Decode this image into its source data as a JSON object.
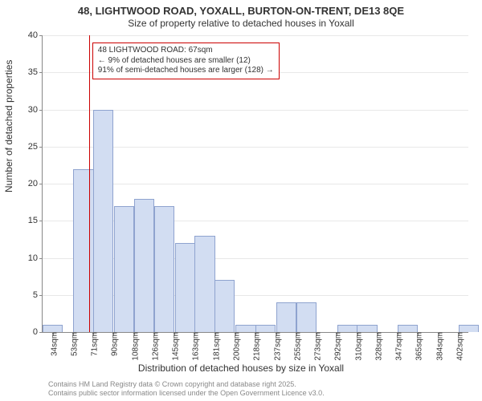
{
  "title_line1": "48, LIGHTWOOD ROAD, YOXALL, BURTON-ON-TRENT, DE13 8QE",
  "title_line2": "Size of property relative to detached houses in Yoxall",
  "ylabel": "Number of detached properties",
  "xlabel": "Distribution of detached houses by size in Yoxall",
  "attribution1": "Contains HM Land Registry data © Crown copyright and database right 2025.",
  "attribution2": "Contains public sector information licensed under the Open Government Licence v3.0.",
  "chart": {
    "type": "histogram",
    "background_color": "#ffffff",
    "grid_color": "#e8e8e8",
    "axis_color": "#888888",
    "bar_fill": "#d2ddf2",
    "bar_stroke": "#8fa3cf",
    "marker_color": "#cc0000",
    "ylim": [
      0,
      40
    ],
    "ytick_step": 5,
    "yticks": [
      0,
      5,
      10,
      15,
      20,
      25,
      30,
      35,
      40
    ],
    "xlim_sqm": [
      25,
      411
    ],
    "xtick_step_sqm": 18.4,
    "xtick_labels": [
      "34sqm",
      "53sqm",
      "71sqm",
      "90sqm",
      "108sqm",
      "126sqm",
      "145sqm",
      "163sqm",
      "181sqm",
      "200sqm",
      "218sqm",
      "237sqm",
      "255sqm",
      "273sqm",
      "292sqm",
      "310sqm",
      "328sqm",
      "347sqm",
      "365sqm",
      "384sqm",
      "402sqm"
    ],
    "bars": [
      {
        "x_sqm": 25,
        "count": 1
      },
      {
        "x_sqm": 43.4,
        "count": 0
      },
      {
        "x_sqm": 53,
        "count": 22
      },
      {
        "x_sqm": 71,
        "count": 30
      },
      {
        "x_sqm": 90,
        "count": 17
      },
      {
        "x_sqm": 108,
        "count": 18
      },
      {
        "x_sqm": 126,
        "count": 17
      },
      {
        "x_sqm": 145,
        "count": 12
      },
      {
        "x_sqm": 163,
        "count": 13
      },
      {
        "x_sqm": 181,
        "count": 7
      },
      {
        "x_sqm": 200,
        "count": 1
      },
      {
        "x_sqm": 218,
        "count": 1
      },
      {
        "x_sqm": 237,
        "count": 4
      },
      {
        "x_sqm": 255,
        "count": 4
      },
      {
        "x_sqm": 273,
        "count": 0
      },
      {
        "x_sqm": 292,
        "count": 1
      },
      {
        "x_sqm": 310,
        "count": 1
      },
      {
        "x_sqm": 328,
        "count": 0
      },
      {
        "x_sqm": 347,
        "count": 1
      },
      {
        "x_sqm": 365,
        "count": 0
      },
      {
        "x_sqm": 384,
        "count": 0
      },
      {
        "x_sqm": 402,
        "count": 1
      }
    ],
    "bar_width_sqm": 18.4,
    "marker_x_sqm": 67,
    "title_fontsize": 12,
    "label_fontsize": 12,
    "tick_fontsize": 10
  },
  "annotation": {
    "line1": "48 LIGHTWOOD ROAD: 67sqm",
    "line2": "← 9% of detached houses are smaller (12)",
    "line3": "91% of semi-detached houses are larger (128) →",
    "left_sqm": 70,
    "top_y": 39,
    "border_color": "#cc0000",
    "fontsize": 10
  }
}
